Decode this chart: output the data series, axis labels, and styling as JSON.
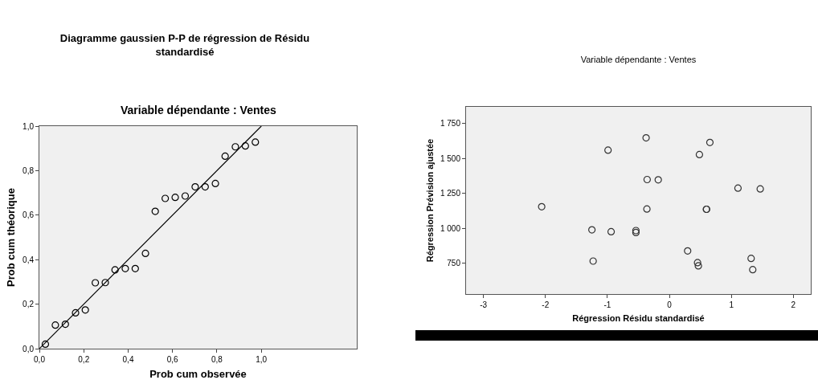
{
  "chart_data": [
    {
      "type": "scatter",
      "title": "Diagramme gaussien P-P de régression de Résidu standardisé",
      "subtitle": "Variable dépendante : Ventes",
      "xlabel": "Prob cum observée",
      "ylabel": "Prob cum théorique",
      "marker": "circle",
      "xlim": [
        0,
        1.43
      ],
      "ylim": [
        0,
        1
      ],
      "xticks": [
        {
          "value": 0,
          "label": "0,0"
        },
        {
          "value": 0.2,
          "label": "0,2"
        },
        {
          "value": 0.4,
          "label": "0,4"
        },
        {
          "value": 0.6,
          "label": "0,6"
        },
        {
          "value": 0.8,
          "label": "0,8"
        },
        {
          "value": 1,
          "label": "1,0"
        }
      ],
      "yticks": [
        {
          "value": 0,
          "label": "0,0"
        },
        {
          "value": 0.2,
          "label": "0,2"
        },
        {
          "value": 0.4,
          "label": "0,4"
        },
        {
          "value": 0.6,
          "label": "0,6"
        },
        {
          "value": 0.8,
          "label": "0,8"
        },
        {
          "value": 1,
          "label": "1,0"
        }
      ],
      "series": [
        {
          "color": "#000000",
          "x": [
            0.027,
            0.072,
            0.117,
            0.163,
            0.207,
            0.252,
            0.297,
            0.341,
            0.387,
            0.432,
            0.478,
            0.522,
            0.567,
            0.612,
            0.657,
            0.702,
            0.747,
            0.793,
            0.837,
            0.883,
            0.928,
            0.973
          ],
          "values": [
            0.02,
            0.106,
            0.11,
            0.161,
            0.174,
            0.296,
            0.297,
            0.354,
            0.36,
            0.36,
            0.428,
            0.617,
            0.675,
            0.68,
            0.686,
            0.727,
            0.727,
            0.742,
            0.865,
            0.907,
            0.911,
            0.928
          ]
        },
        {
          "type": "line",
          "color": "#000000",
          "line_style": "solid",
          "marker": "none",
          "x": [
            0,
            1
          ],
          "values": [
            0,
            1
          ]
        }
      ]
    },
    {
      "type": "scatter",
      "title": "Variable dépendante : Ventes",
      "xlabel": "Régression Résidu standardisé",
      "ylabel": "Régression Prévision ajustée",
      "marker": "circle",
      "xlim": [
        -3.28,
        2.28
      ],
      "ylim": [
        532,
        1868
      ],
      "xticks": [
        -3,
        -2,
        -1,
        0,
        1,
        2
      ],
      "yticks": [
        750,
        {
          "value": 1000,
          "label": "1 000"
        },
        {
          "value": 1250,
          "label": "1 250"
        },
        {
          "value": 1500,
          "label": "1 500"
        },
        {
          "value": 1750,
          "label": "1 750"
        }
      ],
      "series": [
        {
          "color": "#333333",
          "x": [
            -0.376,
            -0.99,
            0.653,
            0.484,
            -0.359,
            -0.18,
            1.106,
            1.465,
            -2.06,
            -0.363,
            0.596,
            0.6,
            -1.25,
            -0.94,
            -0.54,
            -0.54,
            0.294,
            0.454,
            0.467,
            1.318,
            1.344,
            -1.23
          ],
          "values": [
            1647,
            1559,
            1614,
            1527,
            1349,
            1347,
            1288,
            1282,
            1155,
            1139,
            1137,
            1137,
            990,
            977,
            985,
            971,
            840,
            756,
            733,
            786,
            706,
            767
          ]
        }
      ]
    }
  ]
}
